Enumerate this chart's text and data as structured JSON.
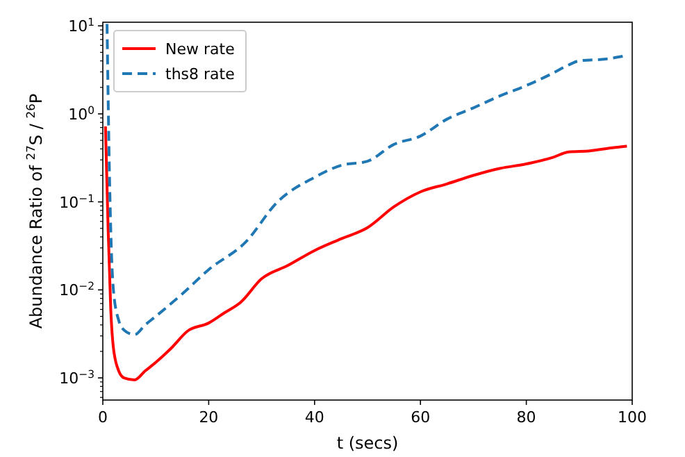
{
  "chart_data": {
    "type": "line",
    "xlabel": "t (secs)",
    "ylabel": "Abundance Ratio of $^{27}$S / $^{26}$P",
    "log": "y",
    "xlim": [
      0,
      100
    ],
    "xticks": [
      0,
      20,
      40,
      60,
      80,
      100
    ],
    "ylim": [
      0.00056,
      11
    ],
    "yticks": [
      {
        "value": 0.001,
        "label": "10$^{−3}$"
      },
      {
        "value": 0.01,
        "label": "10$^{−2}$"
      },
      {
        "value": 0.1,
        "label": "10$^{−1}$"
      },
      {
        "value": 1,
        "label": "10$^{0}$"
      },
      {
        "value": 10,
        "label": "10$^{1}$"
      }
    ],
    "grid": false,
    "legend": "top left",
    "series": [
      {
        "name": "New rate",
        "color": "#ff0000",
        "line_style": "solid",
        "x": [
          0.5,
          1,
          1.5,
          2,
          3,
          4,
          6,
          8,
          10,
          13,
          16,
          20,
          23,
          26,
          30,
          35,
          40,
          45,
          50,
          55,
          60,
          65,
          70,
          75,
          80,
          85,
          88,
          92,
          96,
          99
        ],
        "values": [
          0.72,
          0.05,
          0.006,
          0.0022,
          0.0012,
          0.001,
          0.00095,
          0.0012,
          0.0015,
          0.0022,
          0.0034,
          0.0042,
          0.0055,
          0.0072,
          0.0134,
          0.019,
          0.028,
          0.038,
          0.051,
          0.088,
          0.13,
          0.16,
          0.2,
          0.24,
          0.27,
          0.32,
          0.37,
          0.38,
          0.41,
          0.43
        ]
      },
      {
        "name": "ths8 rate",
        "color": "#1f77b4",
        "line_style": "dashed",
        "x": [
          0.8,
          1.2,
          1.6,
          2,
          3,
          4,
          6,
          8,
          10,
          15,
          20,
          27,
          33,
          40,
          45,
          50,
          55,
          60,
          65,
          70,
          75,
          80,
          85,
          88,
          90,
          95,
          99
        ],
        "values": [
          10.5,
          0.3,
          0.03,
          0.01,
          0.0045,
          0.0035,
          0.0031,
          0.004,
          0.005,
          0.009,
          0.017,
          0.035,
          0.1,
          0.19,
          0.26,
          0.29,
          0.45,
          0.56,
          0.87,
          1.17,
          1.6,
          2.1,
          2.9,
          3.6,
          4.0,
          4.2,
          4.6
        ]
      }
    ]
  }
}
